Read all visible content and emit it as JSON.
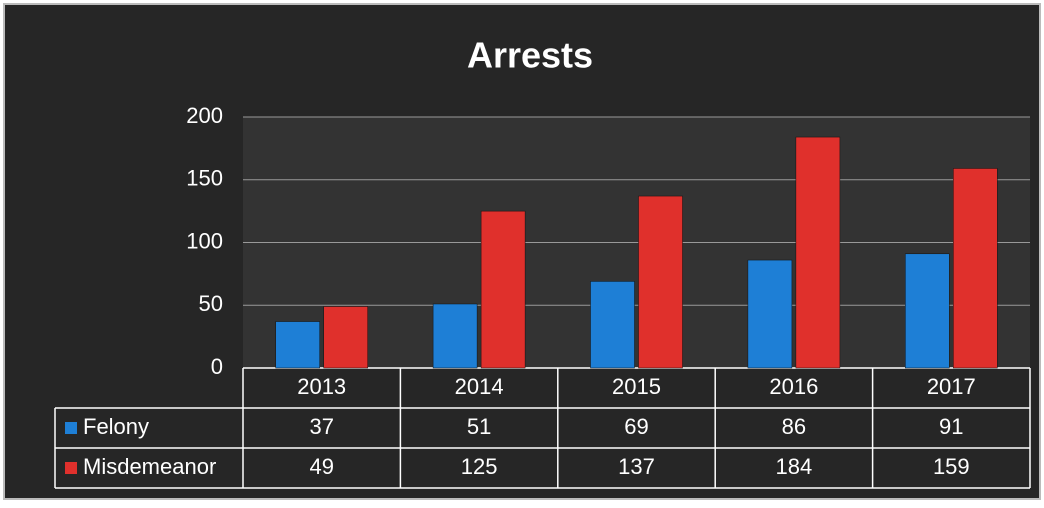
{
  "chart_data": {
    "type": "bar",
    "title": "Arrests",
    "categories": [
      "2013",
      "2014",
      "2015",
      "2016",
      "2017"
    ],
    "series": [
      {
        "name": "Felony",
        "color": "#1e7fd6",
        "values": [
          37,
          51,
          69,
          86,
          91
        ]
      },
      {
        "name": "Misdemeanor",
        "color": "#e0302c",
        "values": [
          49,
          125,
          137,
          184,
          159
        ]
      }
    ],
    "ylim": [
      0,
      200
    ],
    "yticks": [
      0,
      50,
      100,
      150,
      200
    ],
    "grid": true
  }
}
